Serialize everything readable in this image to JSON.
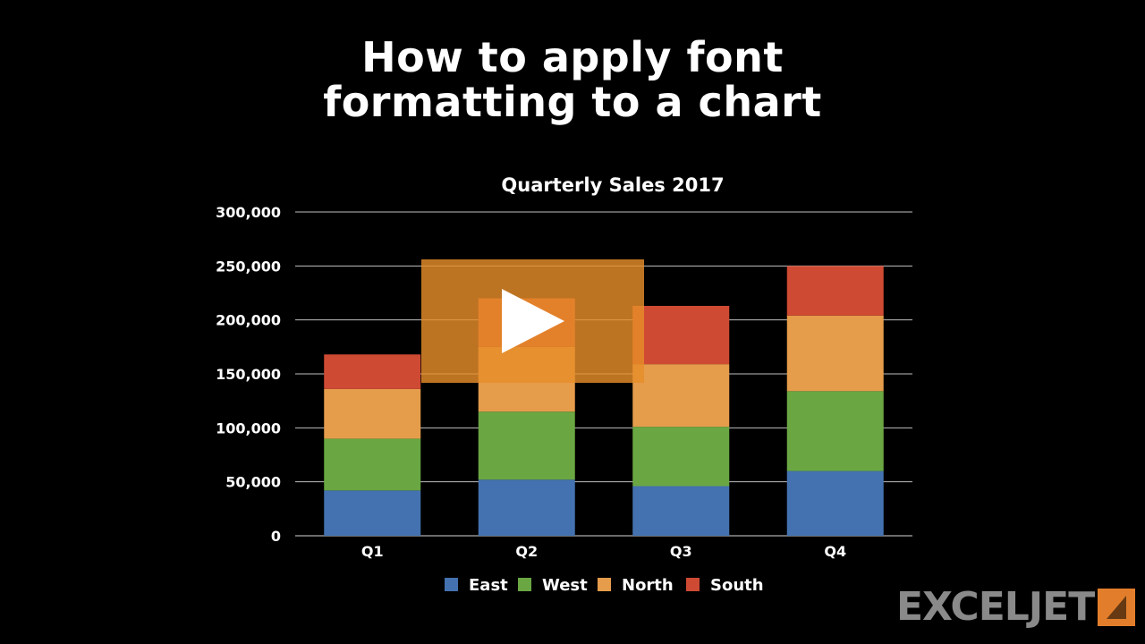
{
  "header": {
    "title_line1": "How to apply font",
    "title_line2": "formatting to a chart"
  },
  "brand": {
    "name": "EXCELJET",
    "icon": "exceljet-logo-icon",
    "color": "#e27e2b"
  },
  "play_button": {
    "icon": "play-icon",
    "color": "#e68d2a"
  },
  "chart_data": {
    "type": "bar",
    "stacked": true,
    "title": "Quarterly Sales 2017",
    "categories": [
      "Q1",
      "Q2",
      "Q3",
      "Q4"
    ],
    "series": [
      {
        "name": "East",
        "color": "#4472b0",
        "values": [
          42000,
          52000,
          46000,
          60000
        ]
      },
      {
        "name": "West",
        "color": "#6aa743",
        "values": [
          48000,
          63000,
          55000,
          74000
        ]
      },
      {
        "name": "North",
        "color": "#e59c4b",
        "values": [
          46000,
          60000,
          58000,
          70000
        ]
      },
      {
        "name": "South",
        "color": "#cf4a33",
        "values": [
          32000,
          45000,
          54000,
          46000
        ]
      }
    ],
    "ylim": [
      0,
      300000
    ],
    "yticks": [
      0,
      50000,
      100000,
      150000,
      200000,
      250000,
      300000
    ],
    "ytick_labels": [
      "0",
      "50,000",
      "100,000",
      "150,000",
      "200,000",
      "250,000",
      "300,000"
    ],
    "grid": true,
    "legend_position": "bottom"
  }
}
